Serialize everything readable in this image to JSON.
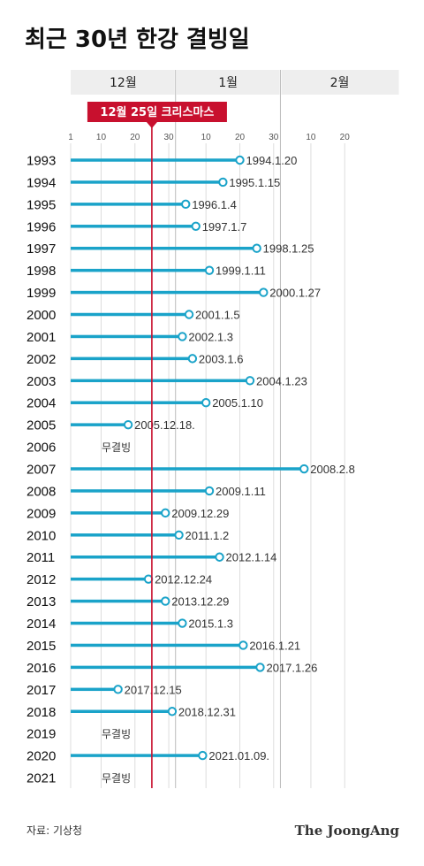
{
  "chart_data": {
    "type": "lollipop",
    "title": "최근 30년 한강 결빙일",
    "months": [
      "12월",
      "1월",
      "2월"
    ],
    "tick_labels": [
      "1",
      "10",
      "20",
      "30",
      "10",
      "20",
      "30",
      "10",
      "20"
    ],
    "marker_label": "12월 25일 크리스마스",
    "no_freeze_label": "무결빙",
    "series": [
      {
        "year": "1993",
        "date": "1994-01-20",
        "label": "1994.1.20"
      },
      {
        "year": "1994",
        "date": "1995-01-15",
        "label": "1995.1.15"
      },
      {
        "year": "1995",
        "date": "1996-01-04",
        "label": "1996.1.4"
      },
      {
        "year": "1996",
        "date": "1997-01-07",
        "label": "1997.1.7"
      },
      {
        "year": "1997",
        "date": "1998-01-25",
        "label": "1998.1.25"
      },
      {
        "year": "1998",
        "date": "1999-01-11",
        "label": "1999.1.11"
      },
      {
        "year": "1999",
        "date": "2000-01-27",
        "label": "2000.1.27"
      },
      {
        "year": "2000",
        "date": "2001-01-05",
        "label": "2001.1.5"
      },
      {
        "year": "2001",
        "date": "2002-01-03",
        "label": "2002.1.3"
      },
      {
        "year": "2002",
        "date": "2003-01-06",
        "label": "2003.1.6"
      },
      {
        "year": "2003",
        "date": "2004-01-23",
        "label": "2004.1.23"
      },
      {
        "year": "2004",
        "date": "2005-01-10",
        "label": "2005.1.10"
      },
      {
        "year": "2005",
        "date": "2005-12-18",
        "label": "2005.12.18."
      },
      {
        "year": "2006",
        "date": null,
        "label": "무결빙"
      },
      {
        "year": "2007",
        "date": "2008-02-08",
        "label": "2008.2.8"
      },
      {
        "year": "2008",
        "date": "2009-01-11",
        "label": "2009.1.11"
      },
      {
        "year": "2009",
        "date": "2009-12-29",
        "label": "2009.12.29"
      },
      {
        "year": "2010",
        "date": "2011-01-02",
        "label": "2011.1.2"
      },
      {
        "year": "2011",
        "date": "2012-01-14",
        "label": "2012.1.14"
      },
      {
        "year": "2012",
        "date": "2012-12-24",
        "label": "2012.12.24"
      },
      {
        "year": "2013",
        "date": "2013-12-29",
        "label": "2013.12.29"
      },
      {
        "year": "2014",
        "date": "2015-01-03",
        "label": "2015.1.3"
      },
      {
        "year": "2015",
        "date": "2016-01-21",
        "label": "2016.1.21"
      },
      {
        "year": "2016",
        "date": "2017-01-26",
        "label": "2017.1.26"
      },
      {
        "year": "2017",
        "date": "2017-12-15",
        "label": "2017.12.15"
      },
      {
        "year": "2018",
        "date": "2018-12-31",
        "label": "2018.12.31"
      },
      {
        "year": "2019",
        "date": null,
        "label": "무결빙"
      },
      {
        "year": "2020",
        "date": "2021-01-09",
        "label": "2021.01.09."
      },
      {
        "year": "2021",
        "date": null,
        "label": "무결빙"
      }
    ],
    "colors": {
      "bar": "#1aa3c9",
      "marker": "#c8102e",
      "grid": "#dddddd",
      "header_bg": "#eeeeee"
    },
    "grid": true
  },
  "source": "자료: 기상청",
  "brand": "The JoongAng"
}
